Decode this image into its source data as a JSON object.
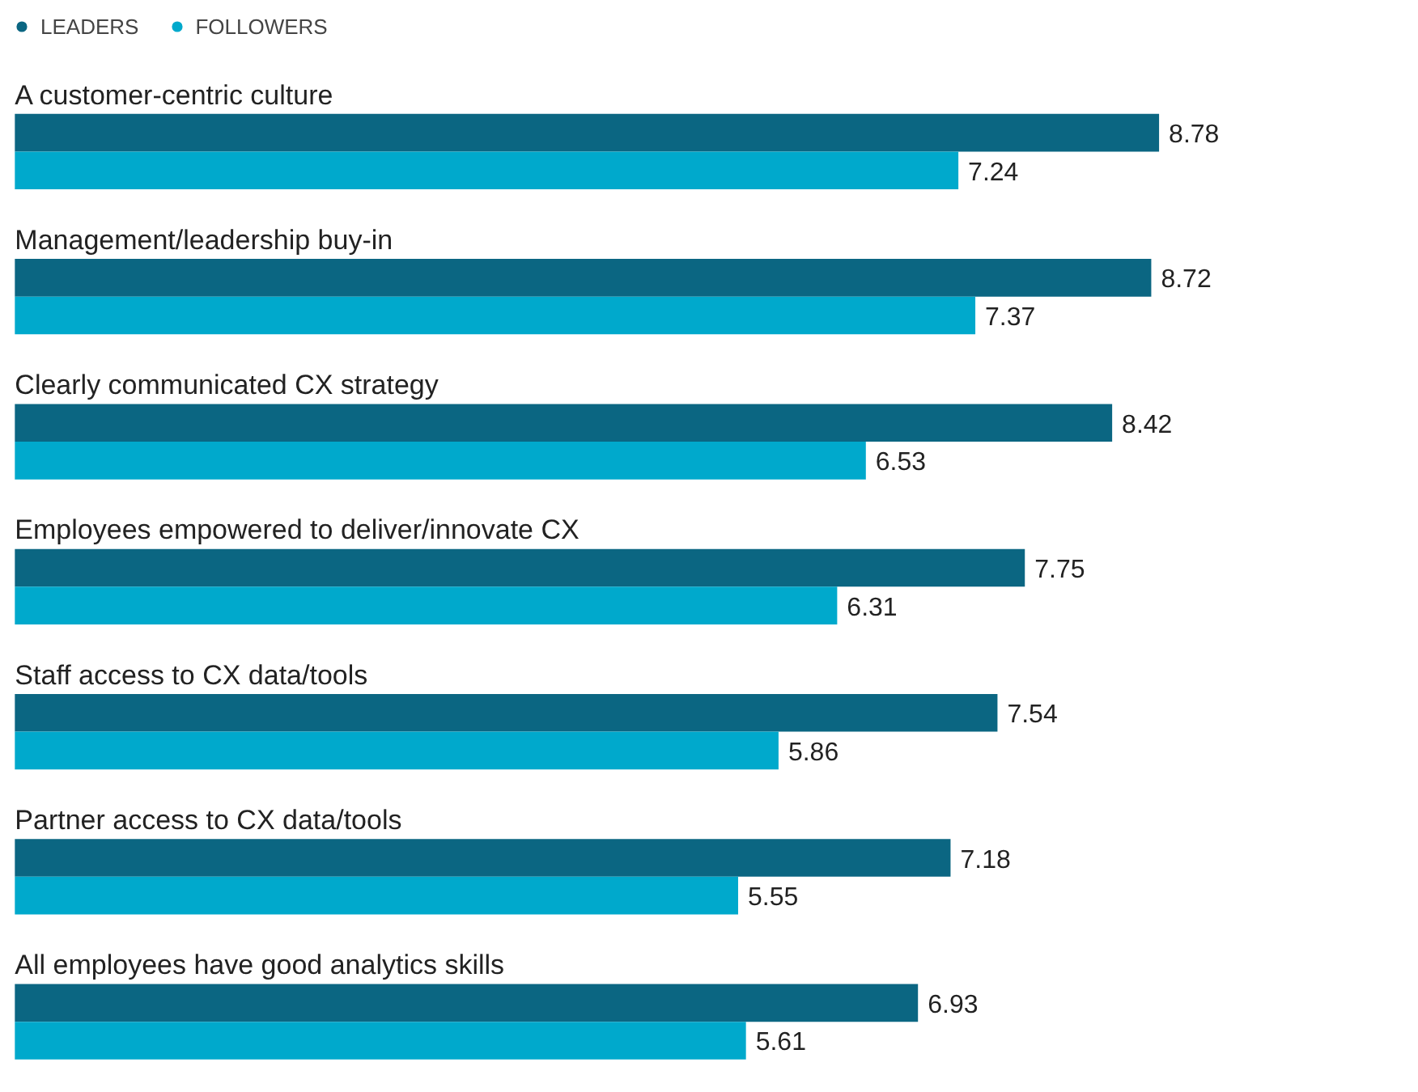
{
  "chart_data": {
    "type": "bar",
    "orientation": "horizontal",
    "data_labels": true,
    "legend": "top left",
    "grid": false,
    "categories": [
      "A customer-centric culture",
      "Management/leadership buy-in",
      "Clearly communicated CX strategy",
      "Employees empowered to deliver/innovate CX",
      "Staff access to CX data/tools",
      "Partner access to CX data/tools",
      "All employees have good analytics skills"
    ],
    "series": [
      {
        "name": "LEADERS",
        "color": "#0b6682",
        "values": [
          8.78,
          8.72,
          8.42,
          7.75,
          7.54,
          7.18,
          6.93
        ]
      },
      {
        "name": "FOLLOWERS",
        "color": "#00a9cc",
        "values": [
          7.24,
          7.37,
          6.53,
          6.31,
          5.86,
          5.55,
          5.61
        ]
      }
    ]
  }
}
